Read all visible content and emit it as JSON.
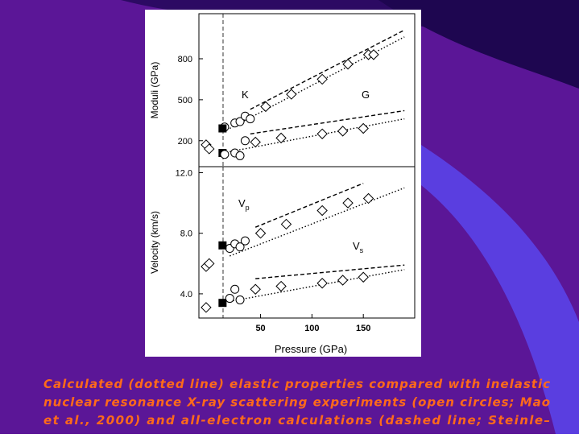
{
  "chart_data": [
    {
      "type": "scatter",
      "ylabel": "Moduli (GPa)",
      "xlim": [
        -10,
        200
      ],
      "ylim": [
        10,
        1130
      ],
      "yticks": [
        200,
        500,
        800
      ],
      "vline": 13.5,
      "annotations": [
        {
          "text": "K"
        },
        {
          "text": "G"
        }
      ],
      "series": [
        {
          "kind": "line",
          "style": "dotted",
          "color": "#000000",
          "x": [
            20,
            190
          ],
          "values": [
            290,
            960
          ]
        },
        {
          "kind": "line",
          "style": "dashed",
          "color": "#000000",
          "x": [
            40,
            190
          ],
          "values": [
            430,
            1010
          ]
        },
        {
          "kind": "scatter",
          "marker": "diamond",
          "color": "#000000",
          "x": [
            55,
            80,
            110,
            135,
            155,
            160,
            -3,
            0
          ],
          "values": [
            450,
            540,
            650,
            760,
            830,
            830,
            170,
            140
          ]
        },
        {
          "kind": "scatter",
          "marker": "circle",
          "color": "#000000",
          "x": [
            15,
            25,
            30,
            35,
            40
          ],
          "values": [
            300,
            330,
            340,
            380,
            360
          ]
        },
        {
          "kind": "scatter",
          "marker": "square",
          "color": "#000000",
          "x": [
            13,
            13
          ],
          "values": [
            290,
            110
          ]
        },
        {
          "kind": "line",
          "style": "dotted",
          "color": "#000000",
          "x": [
            20,
            190
          ],
          "values": [
            120,
            360
          ]
        },
        {
          "kind": "line",
          "style": "dashed",
          "color": "#000000",
          "x": [
            40,
            190
          ],
          "values": [
            250,
            420
          ]
        },
        {
          "kind": "scatter",
          "marker": "diamond",
          "color": "#000000",
          "x": [
            45,
            70,
            110,
            130,
            150
          ],
          "values": [
            190,
            220,
            250,
            270,
            290
          ]
        },
        {
          "kind": "scatter",
          "marker": "circle",
          "color": "#000000",
          "x": [
            15,
            25,
            35,
            30
          ],
          "values": [
            100,
            110,
            200,
            90
          ]
        }
      ]
    },
    {
      "type": "scatter",
      "ylabel": "Velocity (km/s)",
      "xlabel": "Pressure (GPa)",
      "xlim": [
        -10,
        200
      ],
      "ylim": [
        2.4,
        12.4
      ],
      "yticks": [
        {
          "value": 4,
          "label": "4.0"
        },
        {
          "value": 8,
          "label": "8.0"
        },
        {
          "value": 12,
          "label": "12.0"
        }
      ],
      "xticks": [
        50,
        100,
        150
      ],
      "vline": 13.5,
      "annotations": [
        {
          "text": "V",
          "sub": "p"
        },
        {
          "text": "V",
          "sub": "s"
        }
      ],
      "series": [
        {
          "kind": "line",
          "style": "dotted",
          "color": "#000000",
          "x": [
            20,
            190
          ],
          "values": [
            6.5,
            11.0
          ]
        },
        {
          "kind": "line",
          "style": "dashed",
          "color": "#000000",
          "x": [
            45,
            150
          ],
          "values": [
            8.4,
            11.3
          ]
        },
        {
          "kind": "scatter",
          "marker": "diamond",
          "color": "#000000",
          "x": [
            50,
            75,
            110,
            135,
            155,
            -3,
            0
          ],
          "values": [
            8.0,
            8.6,
            9.5,
            10.0,
            10.3,
            5.8,
            6.0
          ]
        },
        {
          "kind": "scatter",
          "marker": "circle",
          "color": "#000000",
          "x": [
            20,
            25,
            30,
            35
          ],
          "values": [
            7.0,
            7.3,
            7.1,
            7.5
          ]
        },
        {
          "kind": "scatter",
          "marker": "square",
          "color": "#000000",
          "x": [
            13,
            13
          ],
          "values": [
            7.2,
            3.4
          ]
        },
        {
          "kind": "line",
          "style": "dotted",
          "color": "#000000",
          "x": [
            20,
            190
          ],
          "values": [
            3.5,
            5.6
          ]
        },
        {
          "kind": "line",
          "style": "dashed",
          "color": "#000000",
          "x": [
            45,
            190
          ],
          "values": [
            5.0,
            5.9
          ]
        },
        {
          "kind": "scatter",
          "marker": "diamond",
          "color": "#000000",
          "x": [
            45,
            70,
            110,
            130,
            150,
            -3
          ],
          "values": [
            4.3,
            4.5,
            4.7,
            4.9,
            5.1,
            3.1
          ]
        },
        {
          "kind": "scatter",
          "marker": "circle",
          "color": "#000000",
          "x": [
            20,
            30,
            25
          ],
          "values": [
            3.7,
            3.6,
            4.3
          ]
        }
      ]
    }
  ],
  "caption_lines": [
    "Calculated (dotted line) elastic properties compared with inelastic",
    "nuclear resonance X-ray scattering experiments (open circles; Mao",
    "et al., 2000) and all-electron calculations (dashed line; Steinle–"
  ]
}
